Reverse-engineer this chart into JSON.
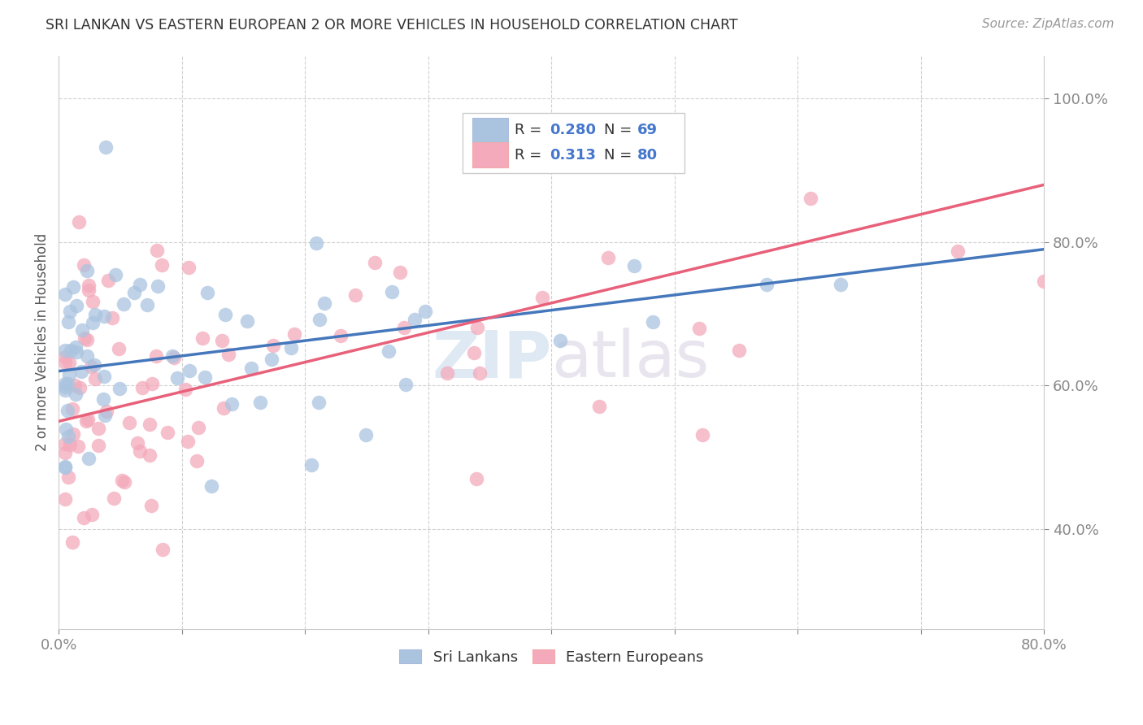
{
  "title": "SRI LANKAN VS EASTERN EUROPEAN 2 OR MORE VEHICLES IN HOUSEHOLD CORRELATION CHART",
  "source": "Source: ZipAtlas.com",
  "ylabel": "2 or more Vehicles in Household",
  "yticks": [
    "40.0%",
    "60.0%",
    "80.0%",
    "100.0%"
  ],
  "ytick_values": [
    0.4,
    0.6,
    0.8,
    1.0
  ],
  "xlim": [
    0.0,
    0.8
  ],
  "ylim": [
    0.26,
    1.06
  ],
  "legend_r1": "0.280",
  "legend_n1": "69",
  "legend_r2": "0.313",
  "legend_n2": "80",
  "sri_lankan_color": "#aac4e0",
  "eastern_european_color": "#f4aabb",
  "line_sri_lankan_color": "#4477bb",
  "line_eastern_european_color": "#e8607a",
  "background_color": "#ffffff",
  "watermark_text": "ZIPatlas",
  "watermark_color": "#d0e4f0",
  "sl_line_x0": 0.0,
  "sl_line_y0": 0.62,
  "sl_line_x1": 0.8,
  "sl_line_y1": 0.79,
  "ee_line_x0": 0.0,
  "ee_line_y0": 0.55,
  "ee_line_x1": 0.8,
  "ee_line_y1": 0.88
}
